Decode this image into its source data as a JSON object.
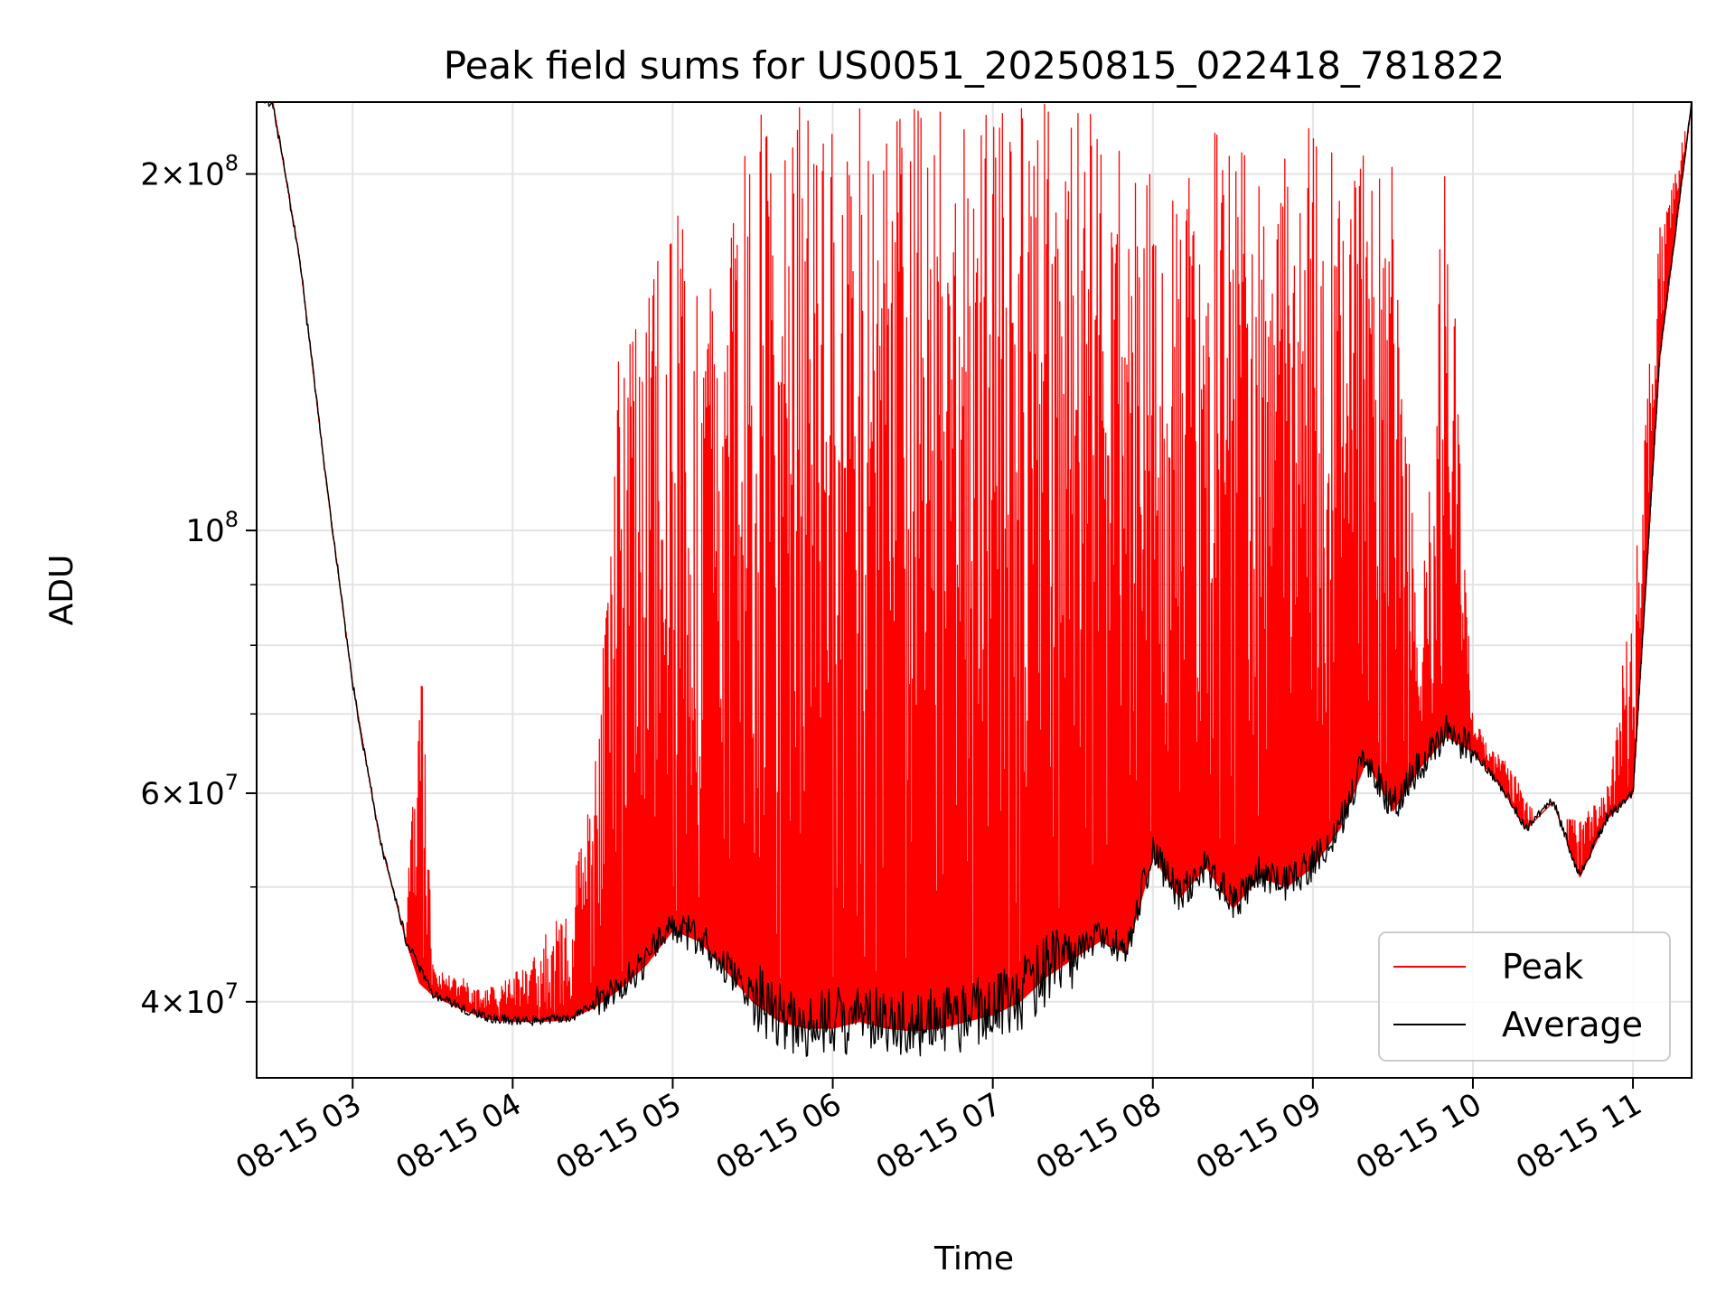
{
  "chart_data": {
    "type": "line",
    "title": "Peak field sums for US0051_20250815_022418_781822",
    "xlabel": "Time",
    "ylabel": "ADU",
    "yscale": "log",
    "xlim": [
      "2025-08-15 02:24",
      "2025-08-15 11:22"
    ],
    "ylim": [
      34500000,
      230000000
    ],
    "grid": true,
    "legend_position": "lower-right",
    "x_ticks": [
      "08-15 03",
      "08-15 04",
      "08-15 05",
      "08-15 06",
      "08-15 07",
      "08-15 08",
      "08-15 09",
      "08-15 10",
      "08-15 11"
    ],
    "y_ticks": [
      {
        "value": 200000000,
        "mantissa": "2",
        "exponent": "8"
      },
      {
        "value": 100000000,
        "mantissa": "",
        "exponent": "8"
      },
      {
        "value": 60000000,
        "mantissa": "6",
        "exponent": "7"
      },
      {
        "value": 40000000,
        "mantissa": "4",
        "exponent": "7"
      }
    ],
    "colors": {
      "peak": "#ff0000",
      "average": "#000000"
    },
    "series": [
      {
        "name": "Peak",
        "color": "#ff0000",
        "x": [
          "02:24",
          "02:30",
          "02:40",
          "02:50",
          "03:00",
          "03:10",
          "03:20",
          "03:25",
          "03:30",
          "03:40",
          "03:50",
          "04:00",
          "04:10",
          "04:20",
          "04:30",
          "04:40",
          "04:50",
          "05:00",
          "05:10",
          "05:20",
          "05:30",
          "05:40",
          "05:50",
          "06:00",
          "06:10",
          "06:20",
          "06:30",
          "06:40",
          "06:50",
          "07:00",
          "07:10",
          "07:20",
          "07:30",
          "07:40",
          "07:50",
          "08:00",
          "08:10",
          "08:20",
          "08:30",
          "08:40",
          "08:50",
          "09:00",
          "09:10",
          "09:20",
          "09:30",
          "09:40",
          "09:50",
          "10:00",
          "10:10",
          "10:20",
          "10:30",
          "10:40",
          "10:50",
          "11:00",
          "11:10",
          "11:22"
        ],
        "envelope_max": [
          230000000,
          230000000,
          170000000,
          110000000,
          74000000,
          55000000,
          45000000,
          89000000,
          43000000,
          42000000,
          41000000,
          42000000,
          45000000,
          48000000,
          60000000,
          145000000,
          160000000,
          190000000,
          165000000,
          175000000,
          230000000,
          230000000,
          230000000,
          230000000,
          230000000,
          230000000,
          230000000,
          230000000,
          230000000,
          230000000,
          230000000,
          230000000,
          230000000,
          230000000,
          230000000,
          200000000,
          190000000,
          215000000,
          225000000,
          200000000,
          210000000,
          220000000,
          215000000,
          215000000,
          205000000,
          80000000,
          230000000,
          69000000,
          65000000,
          60000000,
          58000000,
          57000000,
          60000000,
          90000000,
          180000000,
          230000000
        ],
        "baseline": [
          230000000,
          230000000,
          170000000,
          110000000,
          74000000,
          55000000,
          45000000,
          41500000,
          40500000,
          39500000,
          38700000,
          38500000,
          38500000,
          38600000,
          39500000,
          41000000,
          43000000,
          46000000,
          45000000,
          42500000,
          40000000,
          38500000,
          38000000,
          38000000,
          38500000,
          38000000,
          37800000,
          38000000,
          38500000,
          39000000,
          40000000,
          42000000,
          43500000,
          45000000,
          44000000,
          53000000,
          49000000,
          52000000,
          48000000,
          51000000,
          50000000,
          52000000,
          56000000,
          64000000,
          58000000,
          63000000,
          67000000,
          65000000,
          61000000,
          56000000,
          59000000,
          51000000,
          57000000,
          60000000,
          140000000,
          230000000
        ]
      },
      {
        "name": "Average",
        "color": "#000000",
        "x": [
          "02:24",
          "02:30",
          "02:40",
          "02:50",
          "03:00",
          "03:10",
          "03:20",
          "03:30",
          "03:40",
          "03:50",
          "04:00",
          "04:10",
          "04:20",
          "04:30",
          "04:40",
          "04:50",
          "05:00",
          "05:10",
          "05:20",
          "05:30",
          "05:40",
          "05:50",
          "06:00",
          "06:10",
          "06:20",
          "06:30",
          "06:40",
          "06:50",
          "07:00",
          "07:10",
          "07:20",
          "07:30",
          "07:40",
          "07:50",
          "08:00",
          "08:10",
          "08:20",
          "08:30",
          "08:40",
          "08:50",
          "09:00",
          "09:10",
          "09:20",
          "09:30",
          "09:40",
          "09:50",
          "10:00",
          "10:10",
          "10:20",
          "10:30",
          "10:40",
          "10:50",
          "11:00",
          "11:10",
          "11:22"
        ],
        "y": [
          230000000,
          230000000,
          170000000,
          110000000,
          74000000,
          55000000,
          45000000,
          40500000,
          39500000,
          38700000,
          38500000,
          38500000,
          38600000,
          39500000,
          41000000,
          43000000,
          46000000,
          45000000,
          42500000,
          40000000,
          38500000,
          38000000,
          38000000,
          38500000,
          38000000,
          37800000,
          38000000,
          38500000,
          39000000,
          40000000,
          42000000,
          43500000,
          45000000,
          44000000,
          53000000,
          49000000,
          52000000,
          48000000,
          51000000,
          50000000,
          52000000,
          56000000,
          64000000,
          58000000,
          63000000,
          67000000,
          65000000,
          61000000,
          56000000,
          59000000,
          51000000,
          57000000,
          60000000,
          140000000,
          230000000
        ]
      }
    ]
  }
}
